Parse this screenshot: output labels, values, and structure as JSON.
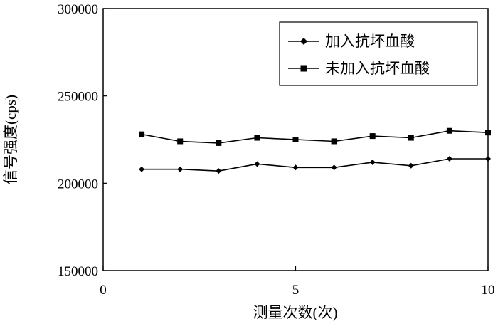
{
  "chart_data": {
    "type": "line",
    "title": "",
    "xlabel": "测量次数(次)",
    "ylabel": "信号强度(cps)",
    "xlim": [
      0,
      10
    ],
    "ylim": [
      150000,
      300000
    ],
    "xticks": [
      "0",
      "5",
      "10"
    ],
    "yticks": [
      "150000",
      "200000",
      "250000",
      "300000"
    ],
    "grid": false,
    "legend_position": "top-right",
    "x": [
      1,
      2,
      3,
      4,
      5,
      6,
      7,
      8,
      9,
      10
    ],
    "series": [
      {
        "name": "加入抗坏血酸",
        "marker": "diamond",
        "color": "#000000",
        "values": [
          208000,
          208000,
          207000,
          211000,
          209000,
          209000,
          212000,
          210000,
          214000,
          214000
        ]
      },
      {
        "name": "未加入抗坏血酸",
        "marker": "square",
        "color": "#000000",
        "values": [
          228000,
          224000,
          223000,
          226000,
          225000,
          224000,
          227000,
          226000,
          230000,
          229000
        ]
      }
    ]
  }
}
